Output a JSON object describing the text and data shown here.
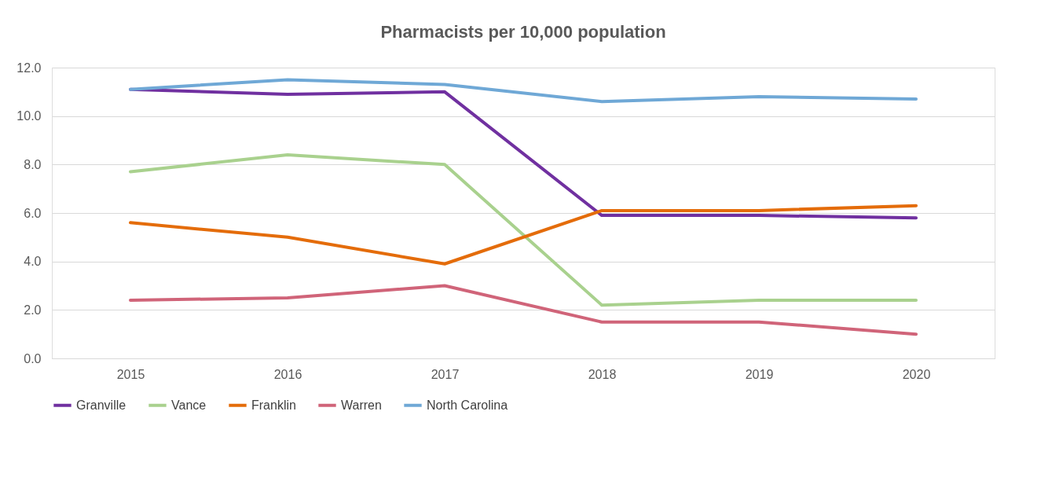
{
  "chart_data": {
    "type": "line",
    "title": "Pharmacists per 10,000 population",
    "categories": [
      "2015",
      "2016",
      "2017",
      "2018",
      "2019",
      "2020"
    ],
    "series": [
      {
        "name": "Granville",
        "color": "#7030a0",
        "values": [
          11.1,
          10.9,
          11.0,
          5.9,
          5.9,
          5.8
        ]
      },
      {
        "name": "Vance",
        "color": "#a9d18e",
        "values": [
          7.7,
          8.4,
          8.0,
          2.2,
          2.4,
          2.4
        ]
      },
      {
        "name": "Franklin",
        "color": "#e46c0a",
        "values": [
          5.6,
          5.0,
          3.9,
          6.1,
          6.1,
          6.3
        ]
      },
      {
        "name": "Warren",
        "color": "#d06479",
        "values": [
          2.4,
          2.5,
          3.0,
          1.5,
          1.5,
          1.0
        ]
      },
      {
        "name": "North Carolina",
        "color": "#6fa8d6",
        "values": [
          11.1,
          11.5,
          11.3,
          10.6,
          10.8,
          10.7
        ]
      }
    ],
    "ylim": [
      0,
      12
    ],
    "yticks": [
      {
        "value": 0,
        "label": "0.0"
      },
      {
        "value": 2,
        "label": "2.0"
      },
      {
        "value": 4,
        "label": "4.0"
      },
      {
        "value": 6,
        "label": "6.0"
      },
      {
        "value": 8,
        "label": "8.0"
      },
      {
        "value": 10,
        "label": "10.0"
      },
      {
        "value": 12,
        "label": "12.0"
      }
    ],
    "grid": "y",
    "legend": "bottom",
    "marker": "none",
    "line_style": "solid"
  }
}
